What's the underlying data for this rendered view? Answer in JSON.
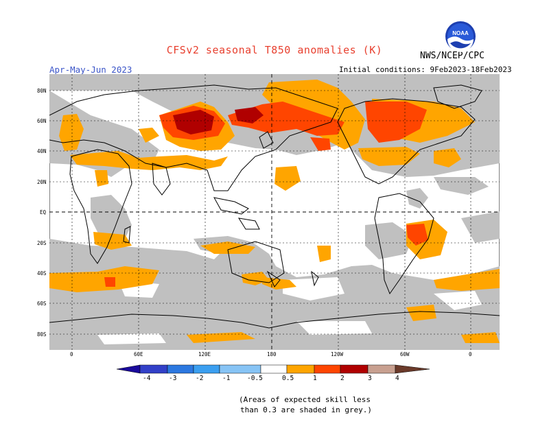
{
  "header": {
    "title": "CFSv2 seasonal T850 anomalies (K)",
    "period": "Apr-May-Jun 2023",
    "initial_conditions": "Initial conditions: 9Feb2023-18Feb2023",
    "agency": "NWS/NCEP/CPC",
    "logo_text": "NOAA"
  },
  "map": {
    "lat_labels": [
      "80N",
      "60N",
      "40N",
      "20N",
      "EQ",
      "20S",
      "40S",
      "60S",
      "80S"
    ],
    "lon_labels": [
      "0",
      "60E",
      "120E",
      "180",
      "120W",
      "60W",
      "0"
    ],
    "colors": {
      "land_line": "#000000",
      "grey_low_skill": "#c0c0c0",
      "warm_05": "#ffa500",
      "warm_1": "#ff4500",
      "warm_2": "#b00000",
      "ocean": "#ffffff"
    }
  },
  "colorbar": {
    "labels": [
      "-4",
      "-3",
      "-2",
      "-1",
      "-0.5",
      "0.5",
      "1",
      "2",
      "3",
      "4"
    ],
    "colors": [
      "#1a0a9c",
      "#3240c8",
      "#2c78e0",
      "#3b9ff0",
      "#87c4f5",
      "#ffffff",
      "#ffa500",
      "#ff4500",
      "#e01010",
      "#a00000",
      "#c8a090",
      "#6b3a2a"
    ]
  },
  "footnote": {
    "line1": "(Areas of expected skill less",
    "line2": "than 0.3 are shaded in grey.)"
  }
}
